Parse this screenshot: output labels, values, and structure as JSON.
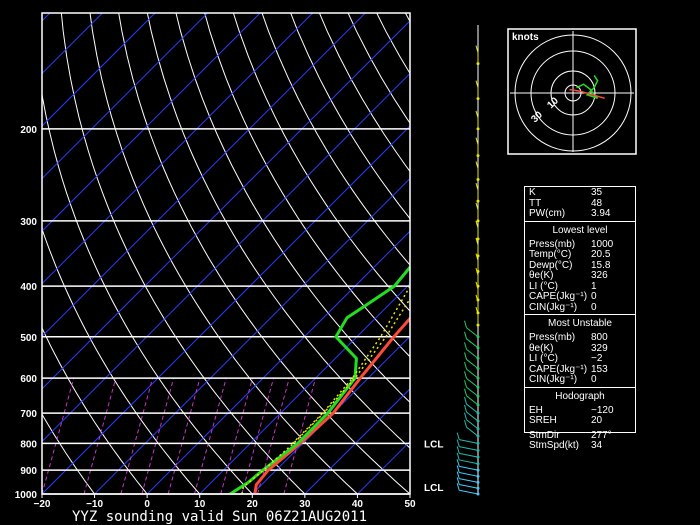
{
  "title": "YYZ sounding valid Sun 06Z21AUG2011",
  "chart_data": [
    {
      "type": "line",
      "title": "YYZ sounding valid Sun 06Z21AUG2011",
      "x_ticks": [
        -20,
        -10,
        0,
        10,
        20,
        30,
        40,
        50
      ],
      "y_ticks": [
        1000,
        900,
        800,
        700,
        600,
        500,
        400,
        300,
        200
      ],
      "x_range": [
        -20,
        50
      ],
      "y_range": [
        1000,
        120
      ],
      "y_scale": "log",
      "annotations": [
        {
          "text": "LCL",
          "pressure": 800
        },
        {
          "text": "LCL",
          "pressure": 970
        }
      ],
      "colors": {
        "temperature": "#ff4a3a",
        "dewpoint": "#22dd22",
        "parcel": "#e8e800"
      },
      "series": [
        {
          "key": "temperature",
          "color": "#ff4a3a",
          "points": [
            [
              1000,
              20.5
            ],
            [
              960,
              19
            ],
            [
              900,
              18.5
            ],
            [
              850,
              19
            ],
            [
              800,
              19.5
            ],
            [
              700,
              20
            ],
            [
              600,
              18.5
            ],
            [
              500,
              17
            ],
            [
              450,
              16.5
            ],
            [
              400,
              14
            ],
            [
              350,
              12
            ],
            [
              300,
              10
            ],
            [
              250,
              7
            ],
            [
              220,
              7
            ],
            [
              200,
              8.5
            ],
            [
              150,
              16
            ],
            [
              125,
              20.5
            ]
          ]
        },
        {
          "key": "dewpoint",
          "color": "#22dd22",
          "points": [
            [
              1000,
              15.8
            ],
            [
              950,
              17
            ],
            [
              900,
              17.5
            ],
            [
              800,
              19
            ],
            [
              700,
              19
            ],
            [
              600,
              17.5
            ],
            [
              550,
              14
            ],
            [
              500,
              6
            ],
            [
              460,
              4.5
            ],
            [
              430,
              6
            ],
            [
              400,
              7.5
            ],
            [
              350,
              6.5
            ],
            [
              300,
              0.5
            ],
            [
              285,
              0.5
            ],
            [
              280,
              0
            ],
            [
              250,
              -6
            ],
            [
              230,
              -10
            ],
            [
              210,
              -10
            ],
            [
              195,
              -9.5
            ],
            [
              150,
              -5
            ],
            [
              125,
              -1
            ]
          ]
        },
        {
          "key": "parcel",
          "color": "#e8e800",
          "dash": true,
          "points": [
            [
              1000,
              18
            ],
            [
              970,
              17
            ],
            [
              900,
              17.6
            ],
            [
              800,
              18.2
            ],
            [
              700,
              18.2
            ],
            [
              600,
              17.5
            ],
            [
              500,
              15.5
            ],
            [
              400,
              12
            ],
            [
              300,
              6
            ],
            [
              200,
              -3
            ],
            [
              140,
              -10
            ],
            [
              125,
              -12
            ]
          ]
        },
        {
          "key": "parcel-2",
          "color": "#e8e800",
          "dash": true,
          "points": [
            [
              800,
              18
            ],
            [
              700,
              18
            ],
            [
              600,
              17
            ],
            [
              500,
              14.5
            ],
            [
              400,
              10.5
            ],
            [
              300,
              4
            ],
            [
              200,
              -5
            ],
            [
              140,
              -12
            ],
            [
              125,
              -14
            ]
          ]
        }
      ]
    },
    {
      "type": "scatter",
      "title": "knots",
      "ring_labels": [
        "10",
        "30"
      ],
      "series": [
        {
          "name": "wind",
          "color": "#22dd22",
          "points": [
            [
              2,
              3
            ],
            [
              6,
              5
            ],
            [
              10,
              2
            ],
            [
              12,
              -1
            ],
            [
              14,
              -3
            ],
            [
              11,
              -2
            ],
            [
              8,
              -1
            ],
            [
              12,
              3
            ],
            [
              14,
              7
            ],
            [
              12,
              10
            ]
          ]
        },
        {
          "name": "storm",
          "color": "#ff4a3a",
          "points": [
            [
              -2,
              2
            ],
            [
              4,
              1
            ],
            [
              18,
              -3
            ]
          ]
        }
      ]
    }
  ],
  "panel": {
    "top": [
      {
        "k": "K",
        "v": "35"
      },
      {
        "k": "TT",
        "v": "48"
      },
      {
        "k": "PW(cm)",
        "v": "3.94"
      }
    ],
    "lowest_title": "Lowest level",
    "lowest": [
      {
        "k": "Press(mb)",
        "v": "1000"
      },
      {
        "k": "Temp(°C)",
        "v": "20.5"
      },
      {
        "k": "Dewp(°C)",
        "v": "15.8"
      },
      {
        "k": "θe(K)",
        "v": "326"
      },
      {
        "k": "LI (°C)",
        "v": "1"
      },
      {
        "k": "CAPE(Jkg⁻¹)",
        "v": "0"
      },
      {
        "k": "CIN(Jkg⁻¹)",
        "v": "0"
      }
    ],
    "unstable_title": "Most Unstable",
    "unstable": [
      {
        "k": "Press(mb)",
        "v": "800"
      },
      {
        "k": "θe(K)",
        "v": "329"
      },
      {
        "k": "LI (°C)",
        "v": "−2"
      },
      {
        "k": "CAPE(Jkg⁻¹)",
        "v": "153"
      },
      {
        "k": "CIN(Jkg⁻¹)",
        "v": "0"
      }
    ],
    "hodo_title": "Hodograph",
    "hodo": [
      {
        "k": "EH",
        "v": "−120"
      },
      {
        "k": "SREH",
        "v": "20"
      }
    ],
    "storm": [
      {
        "k": "StmDir",
        "v": "277°"
      },
      {
        "k": "StmSpd(kt)",
        "v": "34"
      }
    ]
  }
}
